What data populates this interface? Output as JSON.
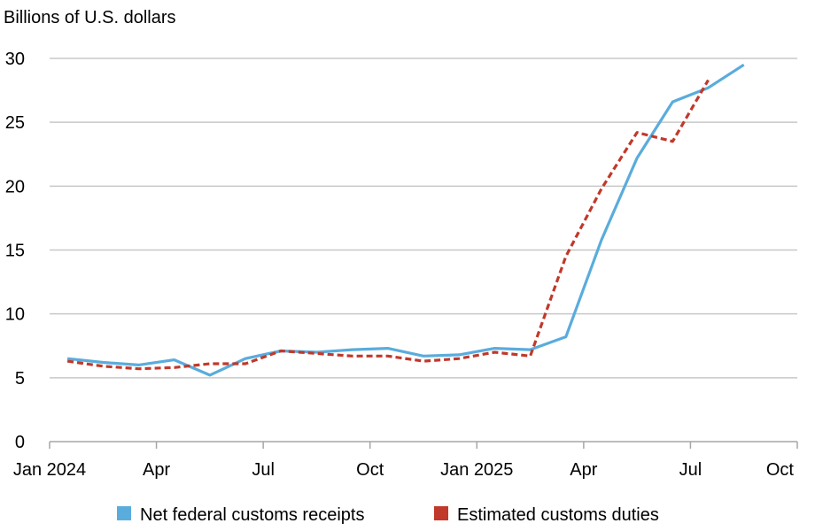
{
  "chart_data": {
    "type": "line",
    "ylabel": "Billions of U.S. dollars",
    "ylim": [
      0,
      30
    ],
    "yticks": [
      "0",
      "5",
      "10",
      "15",
      "20",
      "25",
      "30"
    ],
    "xticks": [
      "Jan 2024",
      "Apr",
      "Jul",
      "Oct",
      "Jan 2025",
      "Apr",
      "Jul",
      "Oct"
    ],
    "grid": true,
    "legend_position": "bottom",
    "series": [
      {
        "name": "Net federal customs receipts",
        "color": "#5aacdc",
        "style": "solid",
        "x": [
          "2024-01",
          "2024-02",
          "2024-03",
          "2024-04",
          "2024-05",
          "2024-06",
          "2024-07",
          "2024-08",
          "2024-09",
          "2024-10",
          "2024-11",
          "2024-12",
          "2025-01",
          "2025-02",
          "2025-03",
          "2025-04",
          "2025-05",
          "2025-06",
          "2025-07",
          "2025-08"
        ],
        "values": [
          6.5,
          6.2,
          6.0,
          6.4,
          5.2,
          6.5,
          7.1,
          7.0,
          7.2,
          7.3,
          6.7,
          6.8,
          7.3,
          7.2,
          8.2,
          15.8,
          22.2,
          26.6,
          27.7,
          29.5
        ]
      },
      {
        "name": "Estimated customs duties",
        "color": "#c0392b",
        "style": "dashed",
        "x": [
          "2024-01",
          "2024-02",
          "2024-03",
          "2024-04",
          "2024-05",
          "2024-06",
          "2024-07",
          "2024-08",
          "2024-09",
          "2024-10",
          "2024-11",
          "2024-12",
          "2025-01",
          "2025-02",
          "2025-03",
          "2025-04",
          "2025-05",
          "2025-06",
          "2025-07"
        ],
        "values": [
          6.3,
          5.9,
          5.7,
          5.8,
          6.1,
          6.1,
          7.1,
          6.9,
          6.7,
          6.7,
          6.3,
          6.5,
          7.0,
          6.7,
          14.5,
          19.8,
          24.2,
          23.5,
          28.3
        ]
      }
    ]
  }
}
